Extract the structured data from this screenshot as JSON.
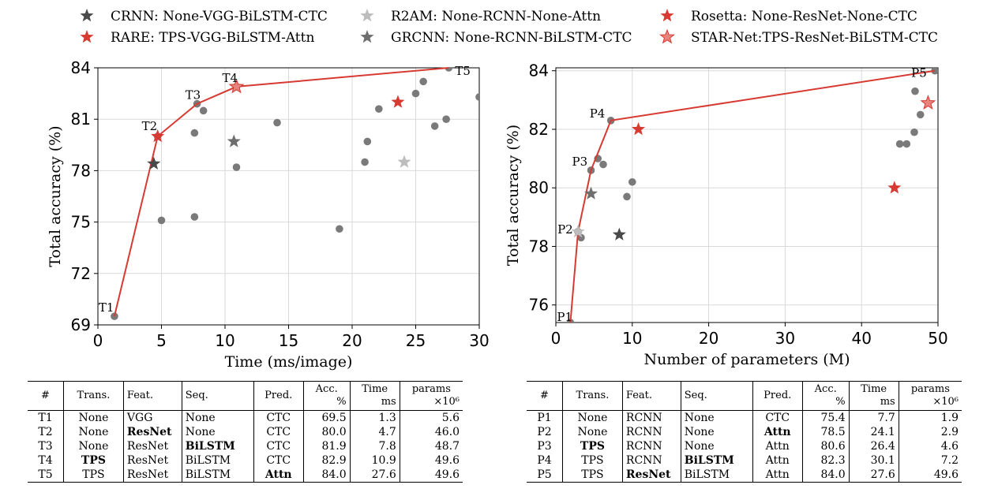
{
  "legend": [
    {
      "label": "CRNN: None-VGG-BiLSTM-CTC",
      "color": "#4a4a4a"
    },
    {
      "label": "RARE: TPS-VGG-BiLSTM-Attn",
      "color": "#d63a32"
    },
    {
      "label": "R2AM:    None-RCNN-None-Attn",
      "color": "#bdbdbd"
    },
    {
      "label": "GRCNN: None-RCNN-BiLSTM-CTC",
      "color": "#6e6e6e"
    },
    {
      "label": "Rosetta:    None-ResNet-None-CTC",
      "color": "#d63a32"
    },
    {
      "label": "STAR-Net:TPS-ResNet-BiLSTM-CTC",
      "color": "#e8837d"
    }
  ],
  "chart_data": [
    {
      "type": "scatter",
      "xlabel": "Time (ms/image)",
      "ylabel": "Total accuracy (%)",
      "xlim": [
        0,
        30
      ],
      "ylim": [
        69,
        84
      ],
      "xticks": [
        "0",
        "5",
        "10",
        "15",
        "20",
        "25",
        "30"
      ],
      "yticks": [
        "69",
        "72",
        "75",
        "78",
        "81",
        "84"
      ],
      "grid": true,
      "points": [
        [
          5.0,
          75.1
        ],
        [
          7.6,
          75.3
        ],
        [
          7.6,
          80.2
        ],
        [
          8.3,
          81.5
        ],
        [
          10.9,
          78.2
        ],
        [
          14.1,
          80.8
        ],
        [
          19.0,
          74.6
        ],
        [
          21.0,
          78.5
        ],
        [
          21.2,
          79.7
        ],
        [
          22.1,
          81.6
        ],
        [
          25.0,
          82.5
        ],
        [
          25.6,
          83.2
        ],
        [
          26.5,
          80.6
        ],
        [
          27.4,
          81.0
        ],
        [
          30.0,
          82.3
        ]
      ],
      "frontier": [
        {
          "label": "T1",
          "x": 1.3,
          "y": 69.5
        },
        {
          "label": "T2",
          "x": 4.7,
          "y": 80.0
        },
        {
          "label": "T3",
          "x": 7.8,
          "y": 81.9
        },
        {
          "label": "T4",
          "x": 10.9,
          "y": 82.9
        },
        {
          "label": "T5",
          "x": 27.6,
          "y": 84.0
        }
      ],
      "stars": [
        {
          "model": "CRNN",
          "x": 4.4,
          "y": 78.4,
          "color": "#4a4a4a"
        },
        {
          "model": "RARE",
          "x": 4.7,
          "y": 80.0,
          "color": "#d63a32"
        },
        {
          "model": "R2AM",
          "x": 24.1,
          "y": 78.5,
          "color": "#bdbdbd"
        },
        {
          "model": "GRCNN",
          "x": 10.7,
          "y": 79.7,
          "color": "#6e6e6e"
        },
        {
          "model": "Rosetta",
          "x": 23.6,
          "y": 82.0,
          "color": "#d63a32"
        },
        {
          "model": "STAR-Net",
          "x": 10.9,
          "y": 82.9,
          "color": "#e8837d"
        }
      ]
    },
    {
      "type": "scatter",
      "xlabel": "Number of parameters (M)",
      "ylabel": "Total accuracy (%)",
      "xlim": [
        0,
        50
      ],
      "ylim": [
        75.4,
        84.1
      ],
      "xticks": [
        "0",
        "10",
        "20",
        "30",
        "40",
        "50"
      ],
      "yticks": [
        "76",
        "78",
        "80",
        "82",
        "84"
      ],
      "grid": true,
      "points": [
        [
          3.3,
          78.3
        ],
        [
          5.5,
          81.0
        ],
        [
          6.2,
          80.8
        ],
        [
          9.3,
          79.7
        ],
        [
          10.0,
          80.2
        ],
        [
          45.0,
          81.5
        ],
        [
          45.9,
          81.5
        ],
        [
          46.9,
          81.9
        ],
        [
          47.0,
          83.3
        ],
        [
          47.7,
          82.5
        ]
      ],
      "frontier": [
        {
          "label": "P1",
          "x": 1.9,
          "y": 75.4
        },
        {
          "label": "P2",
          "x": 2.9,
          "y": 78.5
        },
        {
          "label": "P3",
          "x": 4.6,
          "y": 80.6
        },
        {
          "label": "P4",
          "x": 7.2,
          "y": 82.3
        },
        {
          "label": "P5",
          "x": 49.6,
          "y": 84.0
        }
      ],
      "stars": [
        {
          "model": "CRNN",
          "x": 8.3,
          "y": 78.4,
          "color": "#4a4a4a"
        },
        {
          "model": "RARE",
          "x": 10.8,
          "y": 82.0,
          "color": "#d63a32"
        },
        {
          "model": "R2AM",
          "x": 2.9,
          "y": 78.5,
          "color": "#bdbdbd"
        },
        {
          "model": "GRCNN",
          "x": 4.6,
          "y": 79.8,
          "color": "#6e6e6e"
        },
        {
          "model": "Rosetta",
          "x": 44.3,
          "y": 80.0,
          "color": "#d63a32"
        },
        {
          "model": "STAR-Net",
          "x": 48.7,
          "y": 82.9,
          "color": "#e8837d"
        }
      ]
    }
  ],
  "table_left": {
    "headers": [
      "#",
      "Trans.",
      "Feat.",
      "Seq.",
      "Pred.",
      "Acc.",
      "%",
      "Time",
      "ms",
      "params",
      "×10⁶"
    ],
    "rows": [
      [
        "T1",
        "None",
        "VGG",
        "None",
        "CTC",
        "69.5",
        "1.3",
        "5.6"
      ],
      [
        "T2",
        "None",
        "ResNet",
        "None",
        "CTC",
        "80.0",
        "4.7",
        "46.0"
      ],
      [
        "T3",
        "None",
        "ResNet",
        "BiLSTM",
        "CTC",
        "81.9",
        "7.8",
        "48.7"
      ],
      [
        "T4",
        "TPS",
        "ResNet",
        "BiLSTM",
        "CTC",
        "82.9",
        "10.9",
        "49.6"
      ],
      [
        "T5",
        "TPS",
        "ResNet",
        "BiLSTM",
        "Attn",
        "84.0",
        "27.6",
        "49.6"
      ]
    ]
  },
  "table_right": {
    "headers": [
      "#",
      "Trans.",
      "Feat.",
      "Seq.",
      "Pred.",
      "Acc.",
      "%",
      "Time",
      "ms",
      "params",
      "×10⁶"
    ],
    "rows": [
      [
        "P1",
        "None",
        "RCNN",
        "None",
        "CTC",
        "75.4",
        "7.7",
        "1.9"
      ],
      [
        "P2",
        "None",
        "RCNN",
        "None",
        "Attn",
        "78.5",
        "24.1",
        "2.9"
      ],
      [
        "P3",
        "TPS",
        "RCNN",
        "None",
        "Attn",
        "80.6",
        "26.4",
        "4.6"
      ],
      [
        "P4",
        "TPS",
        "RCNN",
        "BiLSTM",
        "Attn",
        "82.3",
        "30.1",
        "7.2"
      ],
      [
        "P5",
        "TPS",
        "ResNet",
        "BiLSTM",
        "Attn",
        "84.0",
        "27.6",
        "49.6"
      ]
    ]
  }
}
